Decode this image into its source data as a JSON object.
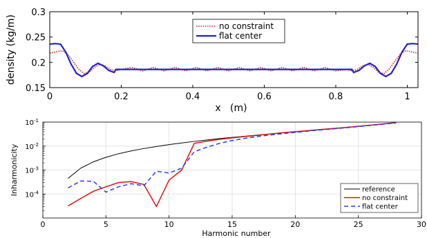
{
  "chart_data": [
    {
      "type": "line",
      "xlabel": "x   (m)",
      "ylabel": "density (kg/m)",
      "xlim": [
        0,
        1.03
      ],
      "ylim": [
        0.15,
        0.3
      ],
      "xticks": [
        0,
        0.2,
        0.4,
        0.6,
        0.8,
        1
      ],
      "xtick_labels": [
        "0",
        "0.2",
        "0.4",
        "0.6",
        "0.8",
        "1"
      ],
      "yticks": [
        0.15,
        0.2,
        0.25,
        0.3
      ],
      "ytick_labels": [
        "0.15",
        "0.2",
        "0.25",
        "0.3"
      ],
      "grid": false,
      "legend_position": "top-center",
      "series": [
        {
          "name": "no constraint",
          "color": "#d62728",
          "style": "dotted",
          "x": [
            0,
            0.02,
            0.035,
            0.05,
            0.065,
            0.08,
            0.095,
            0.11,
            0.125,
            0.14,
            0.155,
            0.17,
            0.185,
            0.2,
            0.23,
            0.26,
            0.29,
            0.32,
            0.35,
            0.38,
            0.41,
            0.44,
            0.47,
            0.5,
            0.53,
            0.56,
            0.59,
            0.62,
            0.65,
            0.68,
            0.71,
            0.74,
            0.77,
            0.8,
            0.83,
            0.845,
            0.86,
            0.875,
            0.89,
            0.905,
            0.92,
            0.935,
            0.95,
            0.965,
            0.98,
            0.995,
            1.01,
            1.03
          ],
          "y": [
            0.218,
            0.221,
            0.223,
            0.216,
            0.202,
            0.187,
            0.178,
            0.18,
            0.19,
            0.196,
            0.193,
            0.186,
            0.183,
            0.186,
            0.19,
            0.183,
            0.19,
            0.183,
            0.19,
            0.183,
            0.19,
            0.183,
            0.19,
            0.183,
            0.19,
            0.183,
            0.19,
            0.183,
            0.19,
            0.183,
            0.19,
            0.183,
            0.19,
            0.183,
            0.186,
            0.183,
            0.186,
            0.193,
            0.196,
            0.19,
            0.18,
            0.178,
            0.187,
            0.202,
            0.216,
            0.223,
            0.221,
            0.218
          ]
        },
        {
          "name": "flat center",
          "color": "#1f1fcf",
          "style": "solid",
          "x": [
            0,
            0.015,
            0.03,
            0.045,
            0.06,
            0.075,
            0.09,
            0.105,
            0.12,
            0.135,
            0.15,
            0.165,
            0.18,
            0.185,
            0.5,
            0.845,
            0.85,
            0.865,
            0.88,
            0.895,
            0.91,
            0.925,
            0.94,
            0.955,
            0.97,
            0.985,
            1.0,
            1.015,
            1.03
          ],
          "y": [
            0.236,
            0.237,
            0.236,
            0.22,
            0.196,
            0.178,
            0.172,
            0.178,
            0.192,
            0.198,
            0.193,
            0.184,
            0.18,
            0.186,
            0.186,
            0.186,
            0.18,
            0.184,
            0.193,
            0.198,
            0.192,
            0.178,
            0.172,
            0.178,
            0.196,
            0.22,
            0.236,
            0.237,
            0.236
          ]
        }
      ]
    },
    {
      "type": "line",
      "xlabel": "Harmonic number",
      "ylabel": "Inharmonicity",
      "xlim": [
        0,
        30
      ],
      "ylim": [
        1e-05,
        0.1
      ],
      "yscale": "log",
      "xticks": [
        0,
        5,
        10,
        15,
        20,
        25,
        30
      ],
      "xtick_labels": [
        "0",
        "5",
        "10",
        "15",
        "20",
        "25",
        "30"
      ],
      "yticks": [
        0.0001,
        0.001,
        0.01,
        0.1
      ],
      "ytick_labels": [
        "10-4",
        "10-3",
        "10-2",
        "10-1"
      ],
      "grid": true,
      "legend_position": "bottom-right",
      "series": [
        {
          "name": "reference",
          "color": "#000000",
          "style": "solid",
          "x": [
            2,
            3,
            4,
            5,
            6,
            7,
            8,
            9,
            10,
            11,
            12,
            13,
            14,
            15,
            16,
            17,
            18,
            19,
            20,
            21,
            22,
            23,
            24,
            25,
            26,
            27,
            28
          ],
          "y": [
            0.00045,
            0.0012,
            0.0022,
            0.0034,
            0.0048,
            0.0063,
            0.0079,
            0.0096,
            0.0115,
            0.0135,
            0.0157,
            0.018,
            0.0205,
            0.023,
            0.0258,
            0.0288,
            0.032,
            0.0355,
            0.039,
            0.043,
            0.048,
            0.053,
            0.059,
            0.066,
            0.074,
            0.083,
            0.093
          ]
        },
        {
          "name": "no constraint",
          "color": "#e01010",
          "style": "solid",
          "x": [
            2,
            3,
            4,
            5,
            6,
            7,
            8,
            9,
            10,
            11,
            12,
            13,
            14,
            15,
            16,
            17,
            18,
            19,
            20,
            21,
            22,
            23,
            24,
            25,
            26,
            27,
            28
          ],
          "y": [
            3.2e-05,
            6.5e-05,
            0.00013,
            0.0002,
            0.0003,
            0.00033,
            0.00025,
            3e-05,
            0.00038,
            0.001,
            0.013,
            0.016,
            0.019,
            0.022,
            0.025,
            0.028,
            0.032,
            0.036,
            0.04,
            0.044,
            0.049,
            0.054,
            0.06,
            0.067,
            0.075,
            0.084,
            0.095
          ]
        },
        {
          "name": "flat center",
          "color": "#1f3fff",
          "style": "dashed",
          "x": [
            2,
            3,
            4,
            5,
            6,
            7,
            8,
            9,
            10,
            11,
            12,
            13,
            14,
            15,
            16,
            17,
            18,
            19,
            20,
            21,
            22,
            23,
            24,
            25,
            26,
            27,
            28
          ],
          "y": [
            0.00018,
            0.00035,
            0.00034,
            0.00012,
            0.0002,
            0.00027,
            0.00022,
            0.0009,
            0.00075,
            0.0012,
            0.0058,
            0.009,
            0.013,
            0.017,
            0.021,
            0.025,
            0.029,
            0.033,
            0.037,
            0.042,
            0.047,
            0.052,
            0.058,
            0.065,
            0.073,
            0.082,
            0.093
          ]
        }
      ]
    }
  ]
}
